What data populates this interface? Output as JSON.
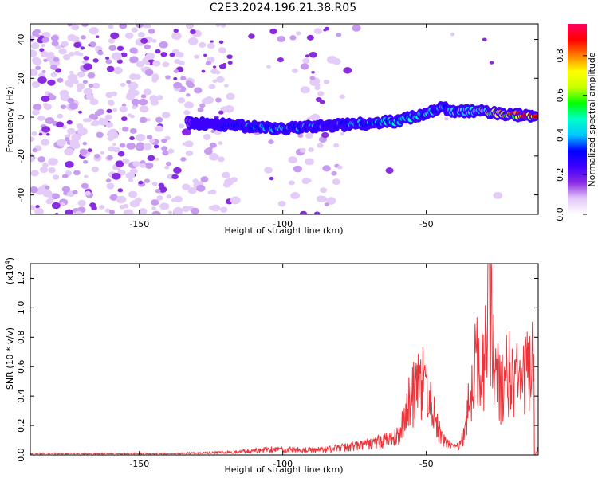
{
  "title": "C2E3.2024.196.21.38.R05",
  "chart_data": [
    {
      "type": "heatmap",
      "name": "spectrogram",
      "xlabel": "Height of straight line (km)",
      "ylabel": "Frequency (Hz)",
      "xlim": [
        -188,
        -11
      ],
      "ylim": [
        -50,
        48
      ],
      "xticks": [
        -150,
        -100,
        -50
      ],
      "xtick_labels": [
        "-150",
        "-100",
        "-50"
      ],
      "yticks": [
        -40,
        -20,
        0,
        20,
        40
      ],
      "ytick_labels": [
        "-40",
        "-20",
        "0",
        "20",
        "40"
      ],
      "colorbar": {
        "label": "Normalized spectral amplitude",
        "range": [
          0,
          0.96
        ],
        "ticks": [
          0.0,
          0.2,
          0.4,
          0.6,
          0.8
        ],
        "tick_labels": [
          "0.0",
          "0.2",
          "0.4",
          "0.6",
          "0.8"
        ],
        "colors": [
          "#ffffff",
          "#e2c8f8",
          "#8a2be2",
          "#3d00ff",
          "#0000ff",
          "#00c8ff",
          "#00ffc8",
          "#00ff00",
          "#c8ff00",
          "#ffff00",
          "#ff8000",
          "#ff0000",
          "#ff0060"
        ]
      },
      "ridge": {
        "x": [
          -133,
          -120,
          -110,
          -100,
          -90,
          -80,
          -70,
          -60,
          -50,
          -45,
          -40,
          -35,
          -30,
          -25,
          -20,
          -15,
          -12
        ],
        "y": [
          -3,
          -4,
          -5,
          -6,
          -5,
          -4,
          -3,
          -2,
          2,
          5,
          3,
          3,
          3,
          2,
          1,
          1,
          1
        ],
        "amplitude": [
          0.15,
          0.3,
          0.4,
          0.45,
          0.4,
          0.35,
          0.4,
          0.45,
          0.5,
          0.4,
          0.45,
          0.5,
          0.6,
          0.8,
          0.85,
          0.95,
          0.95
        ]
      }
    },
    {
      "type": "line",
      "name": "snr",
      "xlabel": "Height of straight line (km)",
      "ylabel": "SNR (10 * v/v)",
      "y_multiplier": "(x10",
      "y_multiplier_exp": "4",
      "y_multiplier_close": ")",
      "xlim": [
        -188,
        -11
      ],
      "ylim": [
        0,
        1.3
      ],
      "xticks": [
        -150,
        -100,
        -50
      ],
      "xtick_labels": [
        "-150",
        "-100",
        "-50"
      ],
      "yticks": [
        0.0,
        0.2,
        0.4,
        0.6,
        0.8,
        1.0,
        1.2
      ],
      "ytick_labels": [
        "0.0",
        "0.2",
        "0.4",
        "0.6",
        "0.8",
        "1.0",
        "1.2"
      ],
      "line_color": "#e8343a",
      "series": [
        {
          "name": "SNR",
          "x": [
            -188,
            -140,
            -115,
            -105,
            -90,
            -80,
            -70,
            -60,
            -58,
            -55,
            -53,
            -50,
            -48,
            -45,
            -40,
            -38,
            -36,
            -33,
            -30,
            -28,
            -26,
            -24,
            -22,
            -20,
            -18,
            -16,
            -14,
            -12.5,
            -12,
            -11.5,
            -11
          ],
          "y": [
            0.01,
            0.01,
            0.02,
            0.05,
            0.04,
            0.06,
            0.09,
            0.15,
            0.3,
            0.5,
            0.55,
            0.62,
            0.4,
            0.15,
            0.06,
            0.1,
            0.3,
            0.75,
            0.8,
            1.3,
            0.8,
            0.5,
            0.7,
            0.65,
            0.6,
            0.65,
            0.7,
            0.75,
            0.0,
            0.03,
            0.06
          ]
        }
      ]
    }
  ]
}
